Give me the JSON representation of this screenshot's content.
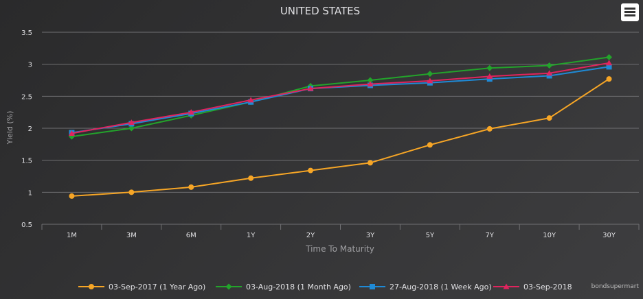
{
  "chart_data": {
    "type": "line",
    "title": "UNITED STATES",
    "xlabel": "Time To Maturity",
    "ylabel": "Yield (%)",
    "categories": [
      "1M",
      "3M",
      "6M",
      "1Y",
      "2Y",
      "3Y",
      "5Y",
      "7Y",
      "10Y",
      "30Y"
    ],
    "ylim": [
      0.5,
      3.5
    ],
    "yticks": [
      "0.5",
      "1",
      "1.5",
      "2",
      "2.5",
      "3",
      "3.5"
    ],
    "grid": true,
    "legend_position": "bottom",
    "series": [
      {
        "name": "03-Sep-2017 (1 Year Ago)",
        "color": "#f7a626",
        "marker": "circle",
        "values": [
          0.94,
          1.0,
          1.08,
          1.22,
          1.34,
          1.46,
          1.74,
          1.99,
          2.16,
          2.77
        ]
      },
      {
        "name": "03-Aug-2018 (1 Month Ago)",
        "color": "#23a32b",
        "marker": "diamond",
        "values": [
          1.87,
          2.0,
          2.2,
          2.41,
          2.66,
          2.75,
          2.85,
          2.94,
          2.98,
          3.11
        ]
      },
      {
        "name": "27-Aug-2018 (1 Week Ago)",
        "color": "#1f8ad6",
        "marker": "square",
        "values": [
          1.93,
          2.07,
          2.23,
          2.41,
          2.62,
          2.67,
          2.71,
          2.77,
          2.82,
          2.96
        ]
      },
      {
        "name": "03-Sep-2018",
        "color": "#e0245e",
        "marker": "triangle",
        "values": [
          1.92,
          2.09,
          2.25,
          2.44,
          2.62,
          2.69,
          2.74,
          2.81,
          2.86,
          3.02
        ]
      }
    ]
  },
  "credit": "bondsupermart",
  "menu": {
    "icon": "hamburger-menu-icon"
  }
}
